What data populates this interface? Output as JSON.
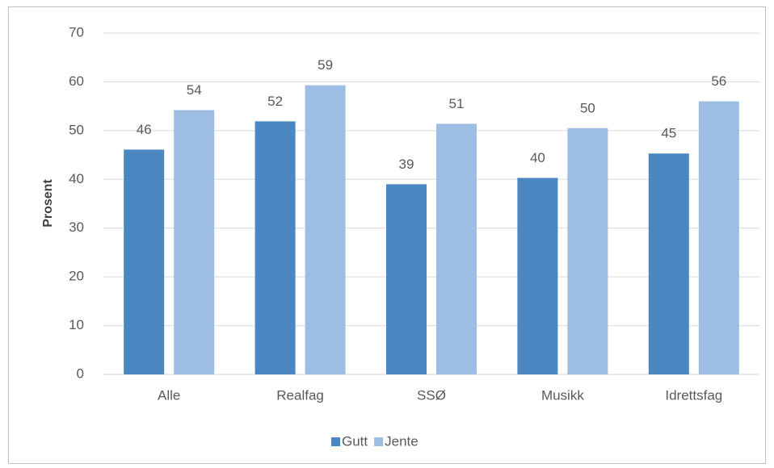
{
  "chart_data": {
    "type": "bar",
    "categories": [
      "Alle",
      "Realfag",
      "SSØ",
      "Musikk",
      "Idrettsfag"
    ],
    "series": [
      {
        "name": "Gutt",
        "color": "#4a86c0",
        "values": [
          46.1,
          51.9,
          39,
          40.3,
          45.3
        ],
        "value_labels": [
          "46",
          "52",
          "39",
          "40",
          "45"
        ]
      },
      {
        "name": "Jente",
        "color": "#9dbde3",
        "values": [
          54.2,
          59.3,
          51.4,
          50.5,
          56
        ],
        "value_labels": [
          "54",
          "59",
          "51",
          "50",
          "56"
        ]
      }
    ],
    "ylabel": "Prosent",
    "ylim": [
      0,
      70
    ],
    "yticks": [
      0,
      10,
      20,
      30,
      40,
      50,
      60,
      70
    ],
    "grid": true,
    "legend": "bottom"
  }
}
